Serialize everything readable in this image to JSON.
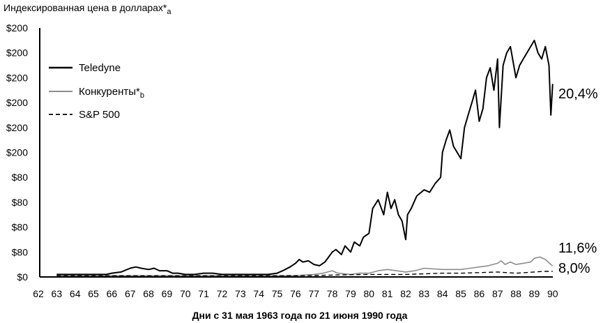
{
  "chart_data": {
    "type": "line",
    "title": "Индексированная цена в долларах*a",
    "title_main": "Индексированная цена в долларах*",
    "title_sub": "a",
    "xlabel": "Дни с 31 мая 1963 года по 21 июня 1990 года",
    "ylabel": "",
    "y_tick_labels": [
      "$0",
      "$80",
      "$80",
      "$80",
      "$80",
      "$200",
      "$200",
      "$200",
      "$200",
      "$200",
      "$200"
    ],
    "x_tick_labels": [
      "62",
      "63",
      "64",
      "65",
      "66",
      "67",
      "68",
      "69",
      "70",
      "71",
      "72",
      "73",
      "74",
      "75",
      "76",
      "77",
      "78",
      "79",
      "80",
      "81",
      "82",
      "83",
      "84",
      "85",
      "86",
      "87",
      "88",
      "89",
      "90"
    ],
    "xlim": [
      62,
      90
    ],
    "ylim": [
      0,
      200
    ],
    "grid": false,
    "legend_position": "top-left",
    "series": [
      {
        "name": "Teledyne",
        "legend_main": "Teledyne",
        "legend_sub": "",
        "color": "#000000",
        "dash": "solid",
        "width": 2,
        "end_label": "20,4%",
        "x": [
          63,
          64,
          65,
          65.7,
          66,
          66.5,
          67,
          67.3,
          67.6,
          68,
          68.3,
          68.6,
          69,
          69.3,
          69.6,
          70,
          70.5,
          71,
          71.5,
          72,
          72.5,
          73,
          73.5,
          74,
          74.5,
          75,
          75.3,
          75.7,
          76,
          76.2,
          76.4,
          76.7,
          77,
          77.3,
          77.6,
          78,
          78.2,
          78.5,
          78.7,
          79,
          79.2,
          79.5,
          79.7,
          80,
          80.2,
          80.5,
          80.8,
          81,
          81.2,
          81.4,
          81.6,
          81.8,
          82,
          82.1,
          82.3,
          82.6,
          83,
          83.3,
          83.6,
          83.9,
          84,
          84.2,
          84.4,
          84.6,
          84.8,
          85,
          85.2,
          85.4,
          85.6,
          85.8,
          86,
          86.2,
          86.4,
          86.6,
          86.8,
          87,
          87.1,
          87.3,
          87.5,
          87.7,
          88,
          88.2,
          88.4,
          88.6,
          88.8,
          89,
          89.2,
          89.4,
          89.6,
          89.8,
          89.9,
          90
        ],
        "values": [
          2,
          2,
          2,
          2,
          3,
          4,
          7,
          8,
          7,
          6,
          7,
          5,
          5,
          3,
          3,
          2,
          2,
          3,
          3,
          2,
          2,
          2,
          2,
          2,
          2,
          3,
          5,
          8,
          11,
          14,
          12,
          13,
          10,
          9,
          12,
          20,
          22,
          18,
          25,
          20,
          28,
          25,
          32,
          35,
          55,
          62,
          50,
          68,
          55,
          62,
          50,
          45,
          30,
          50,
          55,
          65,
          70,
          68,
          75,
          80,
          100,
          110,
          118,
          105,
          100,
          95,
          120,
          130,
          140,
          150,
          125,
          135,
          160,
          168,
          150,
          175,
          120,
          170,
          180,
          185,
          160,
          170,
          175,
          180,
          185,
          190,
          180,
          175,
          185,
          170,
          130,
          155
        ]
      },
      {
        "name": "Конкуренты*b",
        "legend_main": "Конкуренты*",
        "legend_sub": "b",
        "color": "#8c8c8c",
        "dash": "solid",
        "width": 1.6,
        "end_label": "11,6%",
        "x": [
          63,
          66,
          70,
          72,
          75,
          76,
          77,
          77.5,
          78,
          78.3,
          79,
          79.5,
          80,
          80.5,
          81,
          81.5,
          82,
          82.5,
          83,
          84,
          85,
          85.5,
          86,
          86.5,
          87,
          87.2,
          87.4,
          87.7,
          88,
          88.4,
          88.8,
          89,
          89.3,
          89.6,
          89.9,
          90
        ],
        "values": [
          1,
          1,
          1,
          1,
          1,
          1,
          2,
          3,
          5,
          3,
          2,
          3,
          3,
          5,
          6,
          5,
          4,
          5,
          7,
          6,
          6,
          7,
          8,
          9,
          11,
          13,
          10,
          12,
          10,
          11,
          12,
          15,
          16,
          14,
          10,
          9
        ]
      },
      {
        "name": "S&P 500",
        "legend_main": "S&P 500",
        "legend_sub": "",
        "color": "#000000",
        "dash": "6,4",
        "width": 1.4,
        "end_label": "8,0%",
        "x": [
          63,
          66,
          70,
          72,
          75,
          77,
          78,
          79,
          80,
          81,
          82,
          83,
          84,
          85,
          86,
          87,
          87.5,
          88,
          88.5,
          89,
          89.5,
          90
        ],
        "values": [
          1,
          1,
          1,
          1,
          1,
          1.2,
          1.5,
          1.8,
          2,
          2,
          2,
          2.5,
          3,
          3,
          3.5,
          4,
          3.5,
          3,
          3.5,
          4,
          4.5,
          4.5
        ]
      }
    ]
  }
}
